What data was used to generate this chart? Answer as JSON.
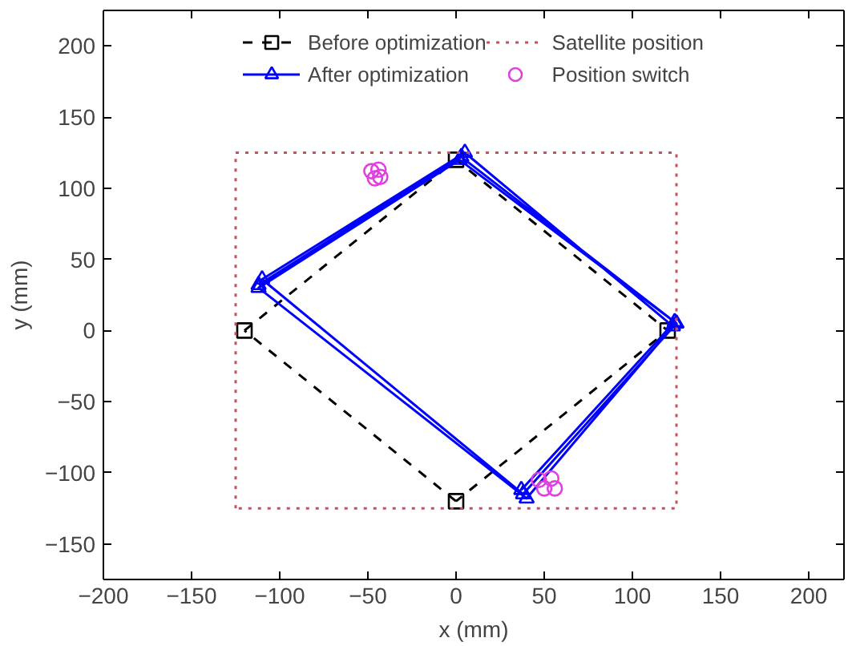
{
  "chart_data": {
    "type": "line",
    "xlabel": "x (mm)",
    "ylabel": "y (mm)",
    "xlim": [
      -200,
      220
    ],
    "ylim": [
      -175,
      225
    ],
    "xticks": [
      -200,
      -150,
      -100,
      -50,
      0,
      50,
      100,
      150,
      200
    ],
    "yticks": [
      -150,
      -100,
      -50,
      0,
      50,
      100,
      150,
      200
    ],
    "grid": false,
    "legend": "top",
    "series": [
      {
        "name": "Before optimization",
        "color": "#000000",
        "line_style": "dashed",
        "marker": "square",
        "x": [
          -120,
          0,
          120,
          0
        ],
        "values": [
          0,
          120,
          0,
          -120
        ]
      },
      {
        "color": "#000000",
        "line_style": "dashed",
        "marker": "none",
        "x": [
          0,
          -120
        ],
        "values": [
          -120,
          0
        ]
      },
      {
        "name": "After optimization",
        "color": "#0000ff",
        "line_style": "solid",
        "marker": "triangle",
        "x": [
          -112,
          3,
          125,
          38,
          -110,
          5,
          123,
          40,
          -112,
          2,
          124,
          37
        ],
        "values": [
          32,
          122,
          5,
          -115,
          36,
          125,
          3,
          -118,
          30,
          120,
          6,
          -112
        ]
      },
      {
        "name": "Satellite position",
        "color": "#c8505a",
        "line_style": "dotted",
        "marker": "none",
        "x": [
          -125,
          125,
          125,
          -125
        ],
        "values": [
          125,
          125,
          -125,
          -125
        ]
      },
      {
        "color": "#c8505a",
        "line_style": "dotted",
        "marker": "none",
        "x": [
          -125,
          -125
        ],
        "values": [
          -125,
          125
        ]
      },
      {
        "name": "Position switch",
        "type": "scatter",
        "color": "#e040e0",
        "marker": "circle",
        "x": [
          -48,
          -44,
          -46,
          -43,
          47,
          54,
          50,
          56
        ],
        "values": [
          112,
          113,
          107,
          108,
          -105,
          -104,
          -111,
          -111
        ]
      }
    ]
  }
}
